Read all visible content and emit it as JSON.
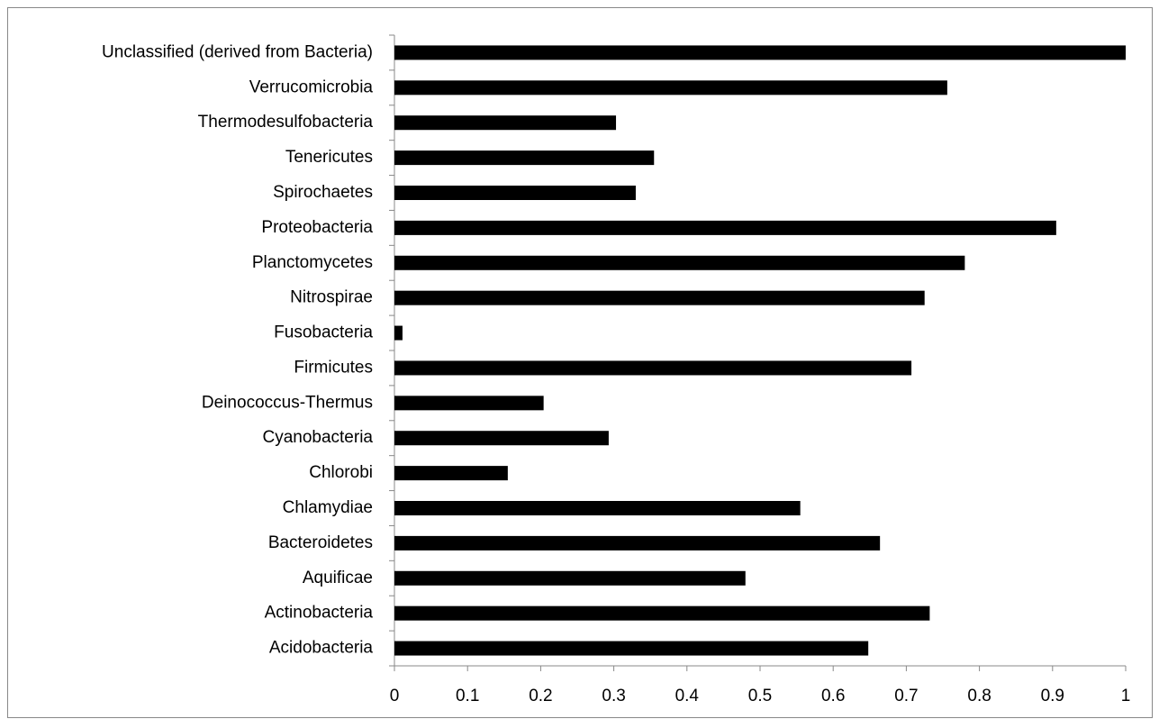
{
  "chart_data": {
    "type": "barh",
    "categories": [
      "Unclassified (derived from Bacteria)",
      "Verrucomicrobia",
      "Thermodesulfobacteria",
      "Tenericutes",
      "Spirochaetes",
      "Proteobacteria",
      "Planctomycetes",
      "Nitrospirae",
      "Fusobacteria",
      "Firmicutes",
      "Deinococcus-Thermus",
      "Cyanobacteria",
      "Chlorobi",
      "Chlamydiae",
      "Bacteroidetes",
      "Aquificae",
      "Actinobacteria",
      "Acidobacteria"
    ],
    "values": [
      1.0,
      0.756,
      0.303,
      0.355,
      0.33,
      0.905,
      0.78,
      0.725,
      0.011,
      0.707,
      0.204,
      0.293,
      0.155,
      0.555,
      0.664,
      0.48,
      0.732,
      0.648
    ],
    "color": "#000000",
    "xlim": [
      0,
      1
    ],
    "xticks": [
      0,
      0.1,
      0.2,
      0.3,
      0.4,
      0.5,
      0.6,
      0.7,
      0.8,
      0.9,
      1
    ],
    "grid": false
  }
}
